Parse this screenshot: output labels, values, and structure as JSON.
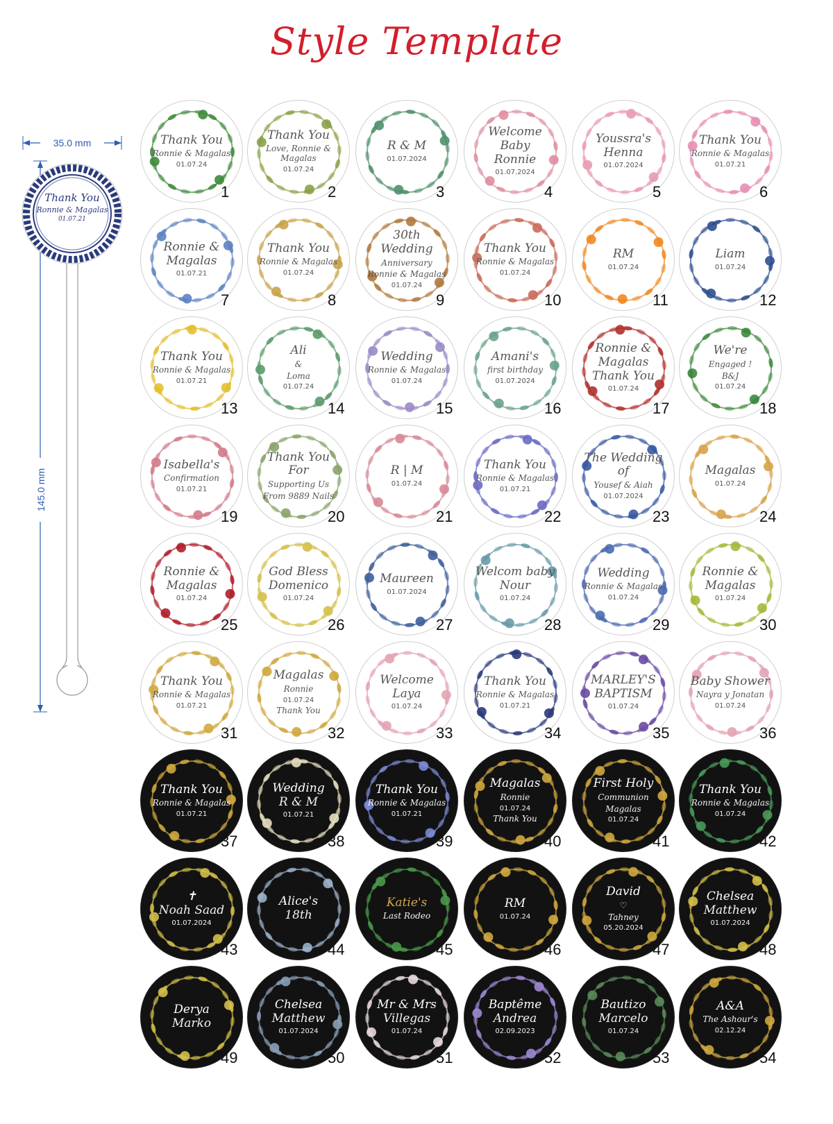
{
  "title": "Style Template",
  "dimensions": {
    "width_label": "35.0 mm",
    "height_label": "145.0 mm"
  },
  "sample": {
    "line1": "Thank You",
    "line2": "Ronnie & Magalas",
    "line3": "01.07.21"
  },
  "colors": {
    "title": "#d21f2b",
    "dimension": "#2b5fb0",
    "dark_bg": "#121212",
    "light_bg": "#ffffff"
  },
  "templates": [
    {
      "num": "1",
      "theme": "light",
      "accent": "#3f8a3a",
      "lines": [
        "Thank You",
        "Ronnie & Magalas",
        "01.07.24"
      ]
    },
    {
      "num": "2",
      "theme": "light",
      "accent": "#8aa34a",
      "lines": [
        "Thank You",
        "Love, Ronnie & Magalas",
        "01.07.24"
      ]
    },
    {
      "num": "3",
      "theme": "light",
      "accent": "#4e8f6a",
      "lines": [
        "R & M",
        "01.07.2024"
      ]
    },
    {
      "num": "4",
      "theme": "light",
      "accent": "#e08fa0",
      "lines": [
        "Welcome Baby",
        "Ronnie",
        "01.07.2024"
      ]
    },
    {
      "num": "5",
      "theme": "light",
      "accent": "#e79bb0",
      "lines": [
        "Youssra's",
        "Henna",
        "01.07.2024"
      ]
    },
    {
      "num": "6",
      "theme": "light",
      "accent": "#e78fb3",
      "lines": [
        "Thank You",
        "Ronnie & Magalas",
        "01.07.21"
      ]
    },
    {
      "num": "7",
      "theme": "light",
      "accent": "#5d83c2",
      "lines": [
        "Ronnie & Magalas",
        "01.07.21"
      ]
    },
    {
      "num": "8",
      "theme": "light",
      "accent": "#c9a34a",
      "lines": [
        "Thank You",
        "Ronnie & Magalas",
        "01.07.24"
      ]
    },
    {
      "num": "9",
      "theme": "light",
      "accent": "#b07a3e",
      "lines": [
        "30th Wedding",
        "Anniversary",
        "Ronnie & Magalas",
        "01.07.24"
      ]
    },
    {
      "num": "10",
      "theme": "light",
      "accent": "#c96a5a",
      "lines": [
        "Thank You",
        "Ronnie & Magalas",
        "01.07.24"
      ]
    },
    {
      "num": "11",
      "theme": "light",
      "accent": "#f08a24",
      "lines": [
        "RM",
        "01.07.24"
      ]
    },
    {
      "num": "12",
      "theme": "light",
      "accent": "#2d4f8f",
      "lines": [
        "Liam",
        "01.07.24"
      ]
    },
    {
      "num": "13",
      "theme": "light",
      "accent": "#e3c02f",
      "lines": [
        "Thank You",
        "Ronnie & Magalas",
        "01.07.21"
      ]
    },
    {
      "num": "14",
      "theme": "light",
      "accent": "#5a9a6a",
      "lines": [
        "Ali",
        "&",
        "Loma",
        "01.07.24"
      ]
    },
    {
      "num": "15",
      "theme": "light",
      "accent": "#9a8ac4",
      "lines": [
        "Wedding",
        "Ronnie & Magalas",
        "01.07.24"
      ]
    },
    {
      "num": "16",
      "theme": "light",
      "accent": "#6aa38a",
      "lines": [
        "Amani's",
        "first birthday",
        "01.07.2024"
      ]
    },
    {
      "num": "17",
      "theme": "light",
      "accent": "#b0302a",
      "lines": [
        "Ronnie & Magalas",
        "Thank You",
        "01.07.24"
      ]
    },
    {
      "num": "18",
      "theme": "light",
      "accent": "#3e8a3e",
      "lines": [
        "We're",
        "Engaged !",
        "B&J",
        "01.07.24"
      ]
    },
    {
      "num": "19",
      "theme": "light",
      "accent": "#d27a88",
      "lines": [
        "Isabella's",
        "Confirmation",
        "01.07.21"
      ]
    },
    {
      "num": "20",
      "theme": "light",
      "accent": "#8aa36a",
      "lines": [
        "Thank You For",
        "Supporting Us",
        "From 9889 Nails"
      ]
    },
    {
      "num": "21",
      "theme": "light",
      "accent": "#d68a96",
      "lines": [
        "R | M",
        "01.07.24"
      ]
    },
    {
      "num": "22",
      "theme": "light",
      "accent": "#6a6ac4",
      "lines": [
        "Thank You",
        "Ronnie & Magalas",
        "01.07.21"
      ]
    },
    {
      "num": "23",
      "theme": "light",
      "accent": "#3a5aa3",
      "lines": [
        "The Wedding of",
        "Yousef & Aiah",
        "01.07.2024"
      ]
    },
    {
      "num": "24",
      "theme": "light",
      "accent": "#d7a24a",
      "lines": [
        "Magalas",
        "01.07.24"
      ]
    },
    {
      "num": "25",
      "theme": "light",
      "accent": "#b01e2a",
      "lines": [
        "Ronnie & Magalas",
        "01.07.24"
      ]
    },
    {
      "num": "26",
      "theme": "light",
      "accent": "#d4c04a",
      "lines": [
        "God Bless",
        "Domenico",
        "01.07.24"
      ]
    },
    {
      "num": "27",
      "theme": "light",
      "accent": "#3e5f9a",
      "lines": [
        "Maureen",
        "01.07.2024"
      ]
    },
    {
      "num": "28",
      "theme": "light",
      "accent": "#6a9aaa",
      "lines": [
        "Welcom baby",
        "Nour",
        "01.07.24"
      ]
    },
    {
      "num": "29",
      "theme": "light",
      "accent": "#4a6ab0",
      "lines": [
        "Wedding",
        "Ronnie & Magalas",
        "01.07.24"
      ]
    },
    {
      "num": "30",
      "theme": "light",
      "accent": "#a8b83a",
      "lines": [
        "Ronnie & Magalas",
        "01.07.24"
      ]
    },
    {
      "num": "31",
      "theme": "light",
      "accent": "#cfa83e",
      "lines": [
        "Thank You",
        "Ronnie & Magalas",
        "01.07.21"
      ]
    },
    {
      "num": "32",
      "theme": "light",
      "accent": "#cfa83e",
      "lines": [
        "Magalas",
        "Ronnie",
        "01.07.24",
        "Thank You"
      ]
    },
    {
      "num": "33",
      "theme": "light",
      "accent": "#e2a3b3",
      "lines": [
        "Welcome Laya",
        "01.07.24"
      ]
    },
    {
      "num": "34",
      "theme": "light",
      "accent": "#2a3a7a",
      "lines": [
        "Thank You",
        "Ronnie & Magalas",
        "01.07.21"
      ]
    },
    {
      "num": "35",
      "theme": "light",
      "accent": "#6a4aa3",
      "lines": [
        "MARLEY'S",
        "BAPTISM",
        "01.07.24"
      ]
    },
    {
      "num": "36",
      "theme": "light",
      "accent": "#e2a3b3",
      "lines": [
        "Baby Shower",
        "Nayra y Jonatan",
        "01.07.24"
      ]
    },
    {
      "num": "37",
      "theme": "dark",
      "accent": "#cfa83e",
      "lines": [
        "Thank You",
        "Ronnie & Magalas",
        "01.07.21"
      ]
    },
    {
      "num": "38",
      "theme": "dark",
      "accent": "#e8e0c0",
      "lines": [
        "Wedding",
        "R & M",
        "01.07.21"
      ]
    },
    {
      "num": "39",
      "theme": "dark",
      "accent": "#7a8ad4",
      "lines": [
        "Thank You",
        "Ronnie & Magalas",
        "01.07.21"
      ]
    },
    {
      "num": "40",
      "theme": "dark",
      "accent": "#cfa83e",
      "lines": [
        "Magalas",
        "Ronnie",
        "01.07.24",
        "Thank You"
      ]
    },
    {
      "num": "41",
      "theme": "dark",
      "accent": "#cfa83e",
      "lines": [
        "First Holy",
        "Communion",
        "Magalas",
        "01.07.24"
      ]
    },
    {
      "num": "42",
      "theme": "dark",
      "accent": "#4a9a5a",
      "lines": [
        "Thank You",
        "Ronnie & Magalas",
        "01.07.24"
      ]
    },
    {
      "num": "43",
      "theme": "dark",
      "accent": "#d4c04a",
      "lines": [
        "✝",
        "Noah Saad",
        "01.07.2024"
      ]
    },
    {
      "num": "44",
      "theme": "dark",
      "accent": "#9ab0c8",
      "lines": [
        "Alice's",
        "18th"
      ]
    },
    {
      "num": "45",
      "theme": "dark",
      "accent": "#4a9a4a",
      "lines": [
        "Katie's",
        "Last Rodeo"
      ]
    },
    {
      "num": "46",
      "theme": "dark",
      "accent": "#cfa83e",
      "lines": [
        "RM",
        "01.07.24"
      ]
    },
    {
      "num": "47",
      "theme": "dark",
      "accent": "#cfa83e",
      "lines": [
        "David",
        "♡",
        "Tahney",
        "05.20.2024"
      ]
    },
    {
      "num": "48",
      "theme": "dark",
      "accent": "#d4c04a",
      "lines": [
        "Chelsea",
        "Matthew",
        "01.07.2024"
      ]
    },
    {
      "num": "49",
      "theme": "dark",
      "accent": "#d4c04a",
      "lines": [
        "Derya",
        "Marko"
      ]
    },
    {
      "num": "50",
      "theme": "dark",
      "accent": "#8aa0b8",
      "lines": [
        "Chelsea",
        "Matthew",
        "01.07.2024"
      ]
    },
    {
      "num": "51",
      "theme": "dark",
      "accent": "#e8d8e0",
      "lines": [
        "Mr & Mrs",
        "Villegas",
        "01.07.24"
      ]
    },
    {
      "num": "52",
      "theme": "dark",
      "accent": "#a08ad4",
      "lines": [
        "Baptême",
        "Andrea",
        "02.09.2023"
      ]
    },
    {
      "num": "53",
      "theme": "dark",
      "accent": "#5a8a5a",
      "lines": [
        "Bautizo",
        "Marcelo",
        "01.07.24"
      ]
    },
    {
      "num": "54",
      "theme": "dark",
      "accent": "#cfa83e",
      "lines": [
        "A&A",
        "The Ashour's",
        "02.12.24"
      ]
    }
  ]
}
